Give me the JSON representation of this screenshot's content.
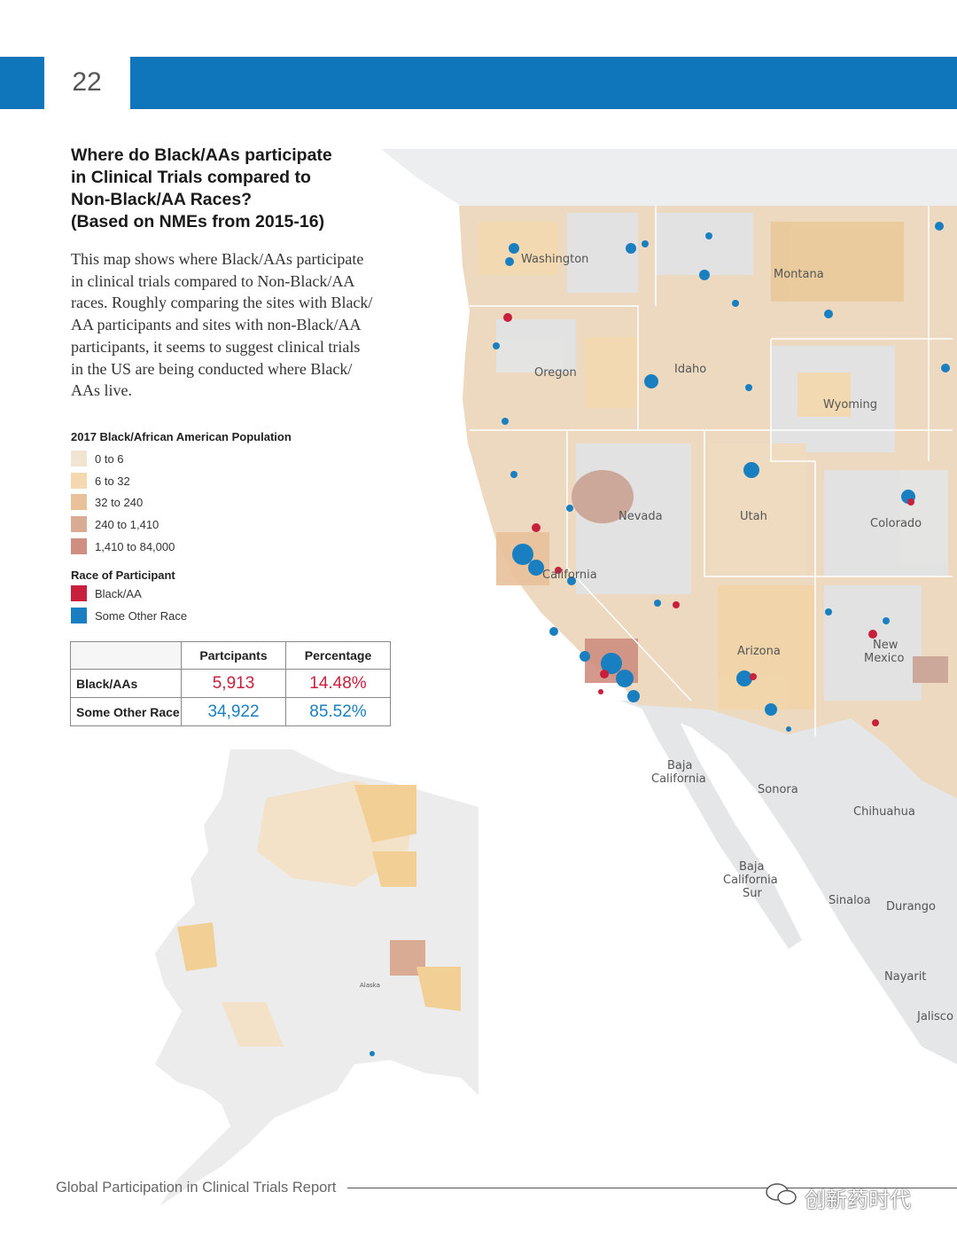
{
  "header": {
    "page_number": "22",
    "color": "#1076bc"
  },
  "title_lines": [
    "Where do Black/AAs participate",
    "in Clinical Trials compared to",
    "Non-Black/AA Races?",
    "(Based on NMEs from 2015-16)"
  ],
  "description_lines": [
    "This map shows where Black/AAs participate",
    "in clinical trials compared to Non-Black/AA",
    "races. Roughly comparing the sites with Black/",
    "AA participants and sites with non-Black/AA",
    "participants, it seems to suggest clinical trials",
    "in the US are being conducted where Black/",
    "AAs live."
  ],
  "population_legend": {
    "title": "2017 Black/African American Population",
    "items": [
      {
        "label": "0 to 6",
        "color": "#f1e4d2"
      },
      {
        "label": "6 to 32",
        "color": "#f4d9b0"
      },
      {
        "label": "32 to 240",
        "color": "#e8c09a"
      },
      {
        "label": "240 to 1,410",
        "color": "#d9aa94"
      },
      {
        "label": "1,410 to 84,000",
        "color": "#cf8e80"
      }
    ]
  },
  "race_legend": {
    "title": "Race of Participant",
    "items": [
      {
        "label": "Black/AA",
        "color": "#c8203c"
      },
      {
        "label": "Some Other Race",
        "color": "#1a7fc0"
      }
    ]
  },
  "table": {
    "headers": [
      "",
      "Partcipants",
      "Percentage"
    ],
    "rows": [
      {
        "label": "Black/AAs",
        "participants": "5,913",
        "percentage": "14.48%"
      },
      {
        "label": "Some Other Race",
        "participants": "34,922",
        "percentage": "85.52%"
      }
    ]
  },
  "map_labels": {
    "washington": "Washington",
    "montana": "Montana",
    "oregon": "Oregon",
    "idaho": "Idaho",
    "wyoming": "Wyoming",
    "nevada": "Nevada",
    "utah": "Utah",
    "colorado": "Colorado",
    "california": "California",
    "arizona": "Arizona",
    "new_mexico_1": "New",
    "new_mexico_2": "Mexico",
    "baja_california_1": "Baja",
    "baja_california_2": "California",
    "sonora": "Sonora",
    "chihuahua": "Chihuahua",
    "baja_sur_1": "Baja",
    "baja_sur_2": "California",
    "baja_sur_3": "Sur",
    "sinaloa": "Sinaloa",
    "durango": "Durango",
    "nayarit": "Nayarit",
    "jalisco": "Jalisco",
    "alaska": "Alaska"
  },
  "footer": {
    "report_title": "Global Participation in Clinical Trials Report"
  },
  "watermark": "创新药时代"
}
